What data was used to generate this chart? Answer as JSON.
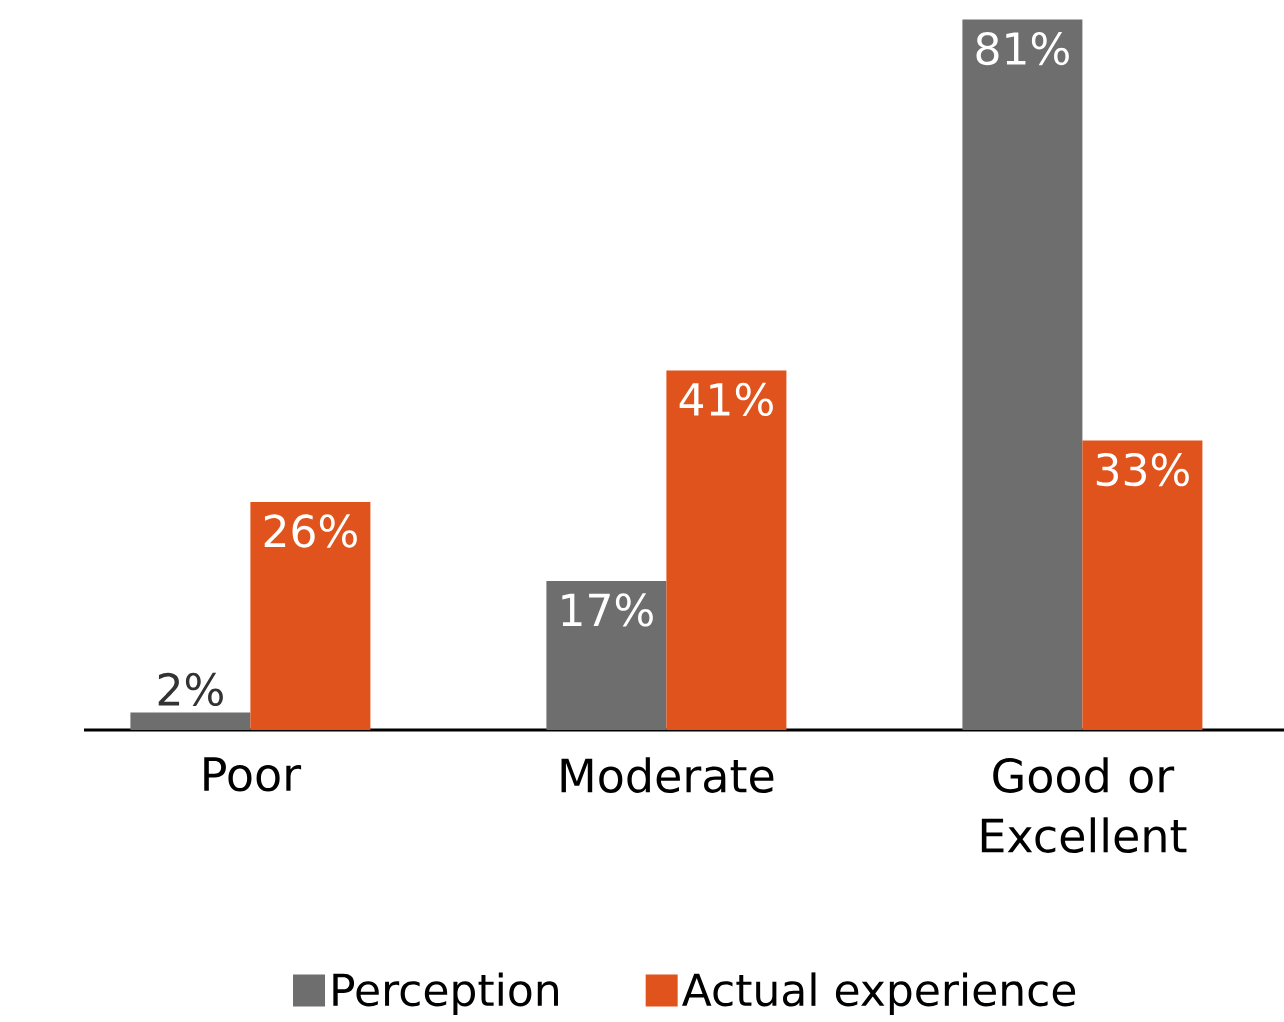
{
  "chart_data": {
    "type": "bar",
    "categories": [
      "Poor",
      "Moderate",
      "Good or Excellent"
    ],
    "series": [
      {
        "name": "Perception",
        "color": "#6e6e6e",
        "values": [
          2,
          17,
          81
        ],
        "value_labels": [
          "2%",
          "17%",
          "81%"
        ]
      },
      {
        "name": "Actual experience",
        "color": "#e0531c",
        "values": [
          26,
          41,
          33
        ],
        "value_labels": [
          "26%",
          "41%",
          "33%"
        ]
      }
    ],
    "legend": "bottom"
  }
}
